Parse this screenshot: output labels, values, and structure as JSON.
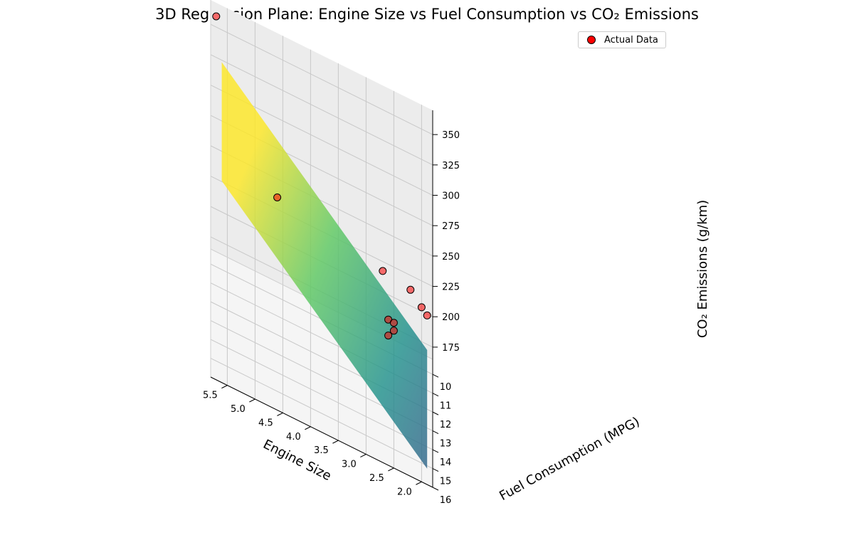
{
  "chart_data": {
    "type": "scatter",
    "title": "3D Regression Plane: Engine Size vs Fuel Consumption vs CO₂ Emissions",
    "xlabel": "Engine Size",
    "ylabel": "Fuel Consumption (MPG)",
    "zlabel": "CO₂ Emissions (g/km)",
    "xlim": [
      1.8,
      5.8
    ],
    "ylim": [
      9.2,
      16
    ],
    "zlim": [
      165,
      370
    ],
    "x_ticks": [
      2.0,
      2.5,
      3.0,
      3.5,
      4.0,
      4.5,
      5.0,
      5.5
    ],
    "y_ticks": [
      10,
      11,
      12,
      13,
      14,
      15,
      16
    ],
    "z_ticks": [
      175,
      200,
      225,
      250,
      275,
      300,
      325,
      350
    ],
    "grid": true,
    "legend_position": "top-right",
    "scatter_color": "#ff0000",
    "surface_colormap": "viridis",
    "series": [
      {
        "name": "Actual Data",
        "x": [
          5.7,
          4.6,
          2.7,
          2.6,
          2.6,
          2.5,
          2.5,
          2.2,
          2.0,
          1.9
        ],
        "y": [
          9.6,
          11.8,
          12.6,
          13.3,
          13.1,
          12.8,
          12.9,
          11.9,
          10.6,
          9.6
        ],
        "z": [
          365,
          275,
          270,
          230,
          240,
          235,
          230,
          255,
          225,
          205
        ]
      },
      {
        "name": "Regression Plane",
        "corners": [
          {
            "x": 5.6,
            "y": 9.5,
            "z": 328
          },
          {
            "x": 1.9,
            "y": 9.5,
            "z": 175
          },
          {
            "x": 1.9,
            "y": 15.8,
            "z": 175
          },
          {
            "x": 5.6,
            "y": 15.8,
            "z": 328
          }
        ]
      }
    ]
  }
}
